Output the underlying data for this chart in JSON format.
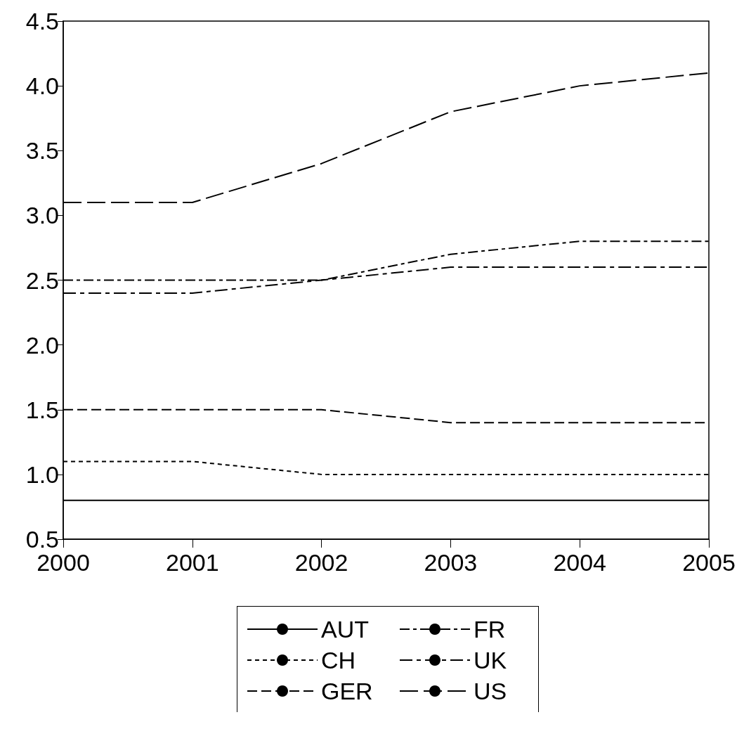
{
  "chart_data": {
    "type": "line",
    "x": [
      2000,
      2001,
      2002,
      2003,
      2004,
      2005
    ],
    "series": [
      {
        "name": "AUT",
        "color": "#000000",
        "line_style": "solid",
        "values": [
          0.8,
          0.8,
          0.8,
          0.8,
          0.8,
          0.8
        ]
      },
      {
        "name": "CH",
        "color": "#000000",
        "line_style": "dashed",
        "values": [
          1.1,
          1.1,
          1.0,
          1.0,
          1.0,
          1.0
        ]
      },
      {
        "name": "GER",
        "color": "#000000",
        "line_style": "dashed",
        "values": [
          1.5,
          1.5,
          1.5,
          1.4,
          1.4,
          1.4
        ]
      },
      {
        "name": "FR",
        "color": "#000000",
        "line_style": "dashed",
        "values": [
          2.5,
          2.5,
          2.5,
          2.7,
          2.8,
          2.8
        ]
      },
      {
        "name": "UK",
        "color": "#000000",
        "line_style": "dashed",
        "values": [
          2.4,
          2.4,
          2.5,
          2.6,
          2.6,
          2.6
        ]
      },
      {
        "name": "US",
        "color": "#000000",
        "line_style": "dashed",
        "values": [
          3.1,
          3.1,
          3.4,
          3.8,
          4.0,
          4.1
        ]
      }
    ],
    "xlim": [
      2000,
      2005
    ],
    "xticks": [
      2000,
      2001,
      2002,
      2003,
      2004,
      2005
    ],
    "ylim": [
      0.5,
      4.5
    ],
    "yticks": [
      0.5,
      {
        "value": 1,
        "label": "1.0"
      },
      1.5,
      {
        "value": 2,
        "label": "2.0"
      },
      2.5,
      {
        "value": 3,
        "label": "3.0"
      },
      3.5,
      {
        "value": 4,
        "label": "4.0"
      },
      4.5
    ],
    "grid": false,
    "legend": "bottom",
    "marker": "none"
  }
}
